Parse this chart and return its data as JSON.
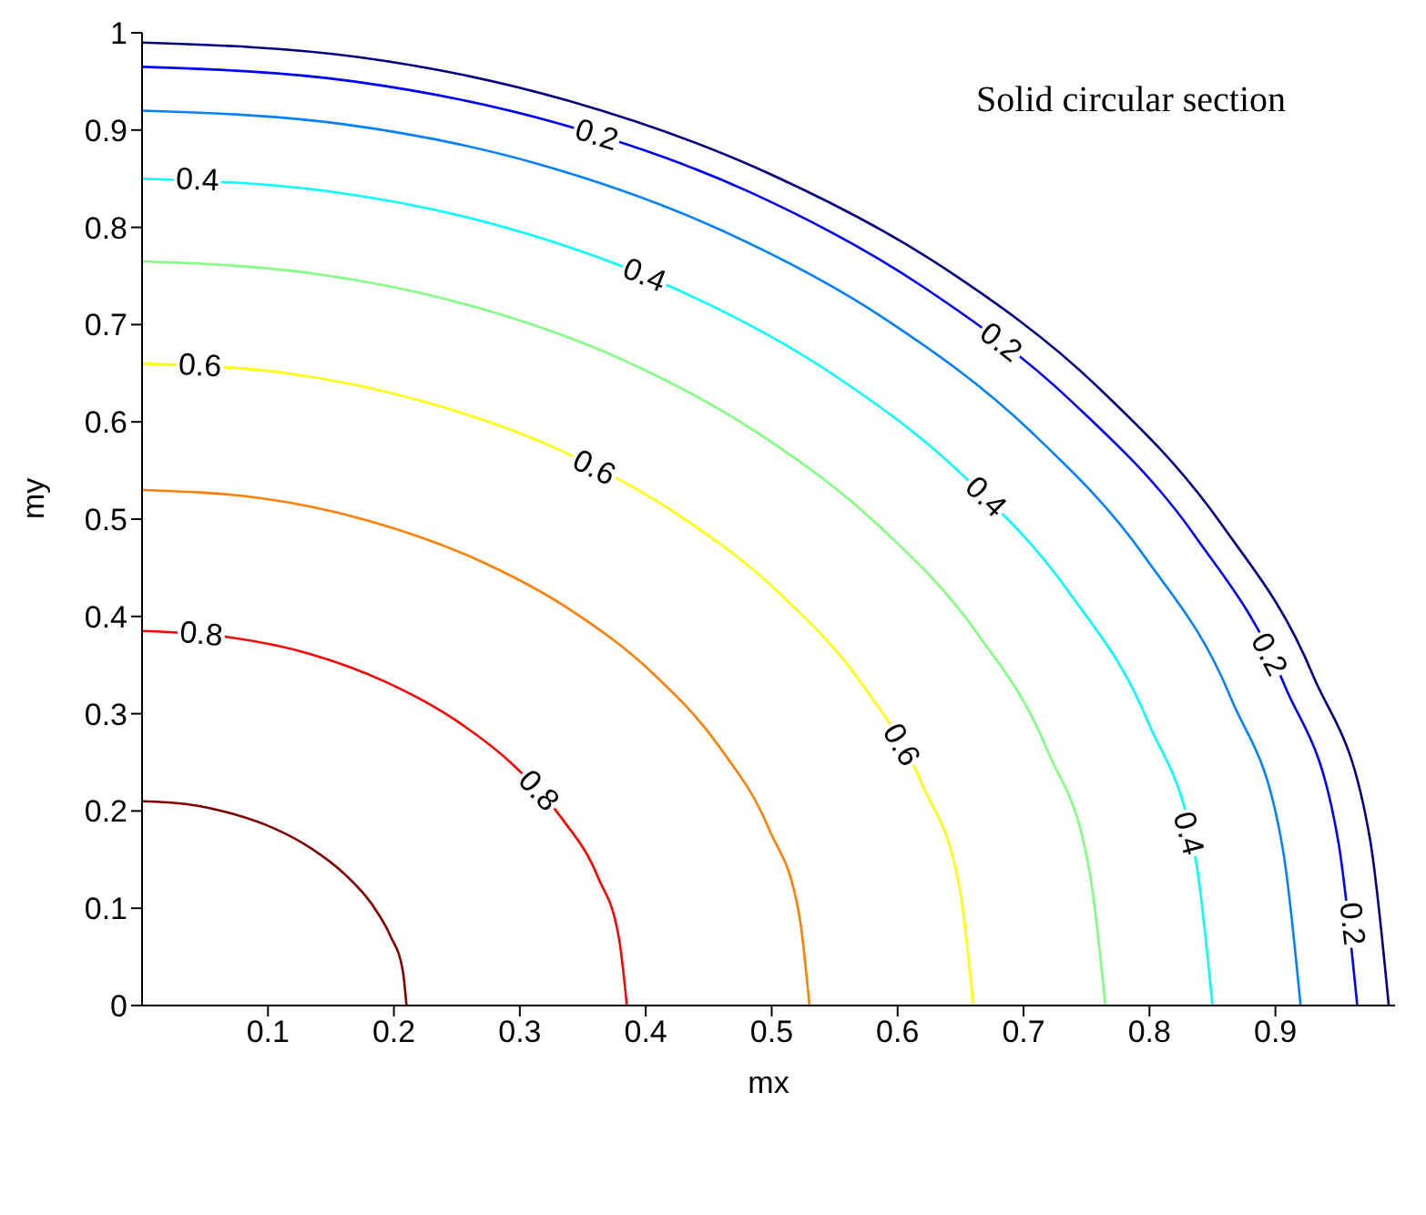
{
  "chart_data": {
    "type": "line",
    "title": "Solid circular section",
    "xlabel": "mx",
    "ylabel": "my",
    "xlim": [
      0,
      0.995
    ],
    "ylim": [
      0,
      1
    ],
    "xticks": [
      0.1,
      0.2,
      0.3,
      0.4,
      0.5,
      0.6,
      0.7,
      0.8,
      0.9
    ],
    "yticks": [
      0,
      0.1,
      0.2,
      0.3,
      0.4,
      0.5,
      0.6,
      0.7,
      0.8,
      0.9,
      1
    ],
    "grid": false,
    "marker": "none",
    "line_style": "solid",
    "series": [
      {
        "color": "#000080",
        "x": [
          0,
          0.172,
          0.339,
          0.495,
          0.637,
          0.758,
          0.857,
          0.93,
          0.975,
          0.99
        ],
        "values": [
          0.99,
          0.975,
          0.93,
          0.857,
          0.758,
          0.637,
          0.495,
          0.339,
          0.172,
          0
        ]
      },
      {
        "color": "#0000ff",
        "x": [
          0,
          0.168,
          0.33,
          0.483,
          0.62,
          0.739,
          0.836,
          0.907,
          0.95,
          0.965
        ],
        "values": [
          0.965,
          0.95,
          0.907,
          0.836,
          0.739,
          0.62,
          0.483,
          0.33,
          0.168,
          0
        ]
      },
      {
        "color": "#0080ff",
        "x": [
          0,
          0.16,
          0.315,
          0.46,
          0.591,
          0.705,
          0.797,
          0.865,
          0.906,
          0.92
        ],
        "values": [
          0.92,
          0.906,
          0.865,
          0.797,
          0.705,
          0.591,
          0.46,
          0.315,
          0.16,
          0
        ]
      },
      {
        "color": "#00ffff",
        "x": [
          0,
          0.148,
          0.291,
          0.425,
          0.546,
          0.651,
          0.736,
          0.799,
          0.837,
          0.85
        ],
        "values": [
          0.85,
          0.837,
          0.799,
          0.736,
          0.651,
          0.546,
          0.425,
          0.291,
          0.148,
          0
        ]
      },
      {
        "color": "#80ff80",
        "x": [
          0,
          0.133,
          0.262,
          0.383,
          0.492,
          0.586,
          0.663,
          0.719,
          0.753,
          0.765
        ],
        "values": [
          0.765,
          0.753,
          0.719,
          0.663,
          0.586,
          0.492,
          0.383,
          0.262,
          0.133,
          0
        ]
      },
      {
        "color": "#ffff00",
        "x": [
          0,
          0.115,
          0.226,
          0.33,
          0.424,
          0.506,
          0.572,
          0.62,
          0.65,
          0.66
        ],
        "values": [
          0.66,
          0.65,
          0.62,
          0.572,
          0.506,
          0.424,
          0.33,
          0.226,
          0.115,
          0
        ]
      },
      {
        "color": "#ff8000",
        "x": [
          0,
          0.092,
          0.181,
          0.265,
          0.341,
          0.406,
          0.459,
          0.498,
          0.522,
          0.53
        ],
        "values": [
          0.53,
          0.522,
          0.498,
          0.459,
          0.406,
          0.341,
          0.265,
          0.181,
          0.092,
          0
        ]
      },
      {
        "color": "#ff0000",
        "x": [
          0,
          0.067,
          0.132,
          0.193,
          0.247,
          0.295,
          0.333,
          0.362,
          0.379,
          0.385
        ],
        "values": [
          0.385,
          0.379,
          0.362,
          0.333,
          0.295,
          0.247,
          0.193,
          0.132,
          0.067,
          0
        ]
      },
      {
        "color": "#800000",
        "x": [
          0,
          0.036,
          0.072,
          0.105,
          0.135,
          0.161,
          0.182,
          0.197,
          0.207,
          0.21
        ],
        "values": [
          0.21,
          0.207,
          0.197,
          0.182,
          0.161,
          0.135,
          0.105,
          0.072,
          0.036,
          0
        ]
      }
    ],
    "annotations": [
      {
        "text": "0.2",
        "x": 0.361,
        "y": 0.895
      },
      {
        "text": "0.2",
        "x": 0.682,
        "y": 0.682
      },
      {
        "text": "0.2",
        "x": 0.895,
        "y": 0.361
      },
      {
        "text": "0.2",
        "x": 0.961,
        "y": 0.084
      },
      {
        "text": "0.4",
        "x": 0.044,
        "y": 0.849
      },
      {
        "text": "0.4",
        "x": 0.399,
        "y": 0.751
      },
      {
        "text": "0.4",
        "x": 0.67,
        "y": 0.523
      },
      {
        "text": "0.4",
        "x": 0.831,
        "y": 0.177
      },
      {
        "text": "0.6",
        "x": 0.046,
        "y": 0.658
      },
      {
        "text": "0.6",
        "x": 0.359,
        "y": 0.553
      },
      {
        "text": "0.6",
        "x": 0.603,
        "y": 0.268
      },
      {
        "text": "0.8",
        "x": 0.047,
        "y": 0.382
      },
      {
        "text": "0.8",
        "x": 0.315,
        "y": 0.221
      }
    ]
  }
}
